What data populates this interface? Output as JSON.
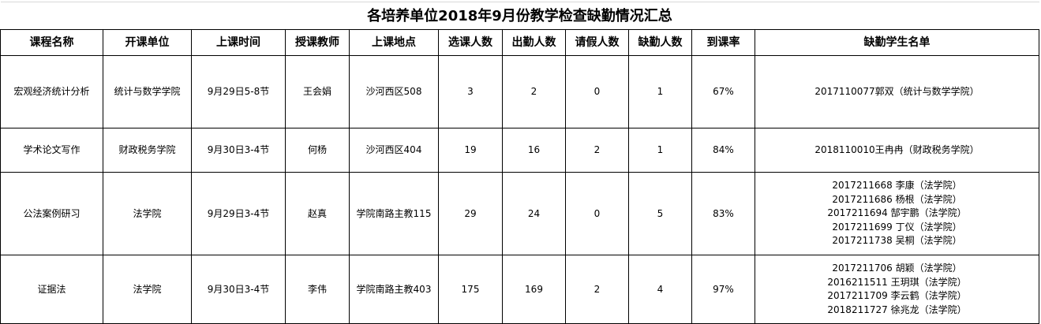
{
  "title": "各培养单位2018年9月份教学检查缺勤情况汇总",
  "headers": [
    "课程名称",
    "开课单位",
    "上课时间",
    "授课教师",
    "上课地点",
    "选课人数",
    "出勤人数",
    "请假人数",
    "缺勤人数",
    "到课率",
    "缺勤学生名单"
  ],
  "rows": [
    {
      "cells": [
        "宏观经济统计分析",
        "统计与数学学院",
        "9月29日5-8节",
        "王会娟",
        "沙河西区508",
        "3",
        "2",
        "0",
        "1",
        "67%"
      ],
      "absent": [
        "2017110077郭双（统计与数学学院）"
      ]
    },
    {
      "cells": [
        "学术论文写作",
        "财政税务学院",
        "9月30日3-4节",
        "何杨",
        "沙河西区404",
        "19",
        "16",
        "2",
        "1",
        "84%"
      ],
      "absent": [
        "2018110010王冉冉（财政税务学院）"
      ]
    },
    {
      "cells": [
        "公法案例研习",
        "法学院",
        "9月29日3-4节",
        "赵真",
        "学院南路主教115",
        "29",
        "24",
        "0",
        "5",
        "83%"
      ],
      "absent": [
        "2017211668 李康（法学院）",
        "2017211686 杨根（法学院）",
        "2017211694 郜宇鹏（法学院）",
        "2017211699 丁仪（法学院）",
        "2017211738 吴桐（法学院）"
      ]
    },
    {
      "cells": [
        "证据法",
        "法学院",
        "9月30日3-4节",
        "李伟",
        "学院南路主教403",
        "175",
        "169",
        "2",
        "4",
        "97%"
      ],
      "absent": [
        "2017211706 胡颖（法学院）",
        "2016211511 王玥琪（法学院）",
        "2017211709 李云鹤（法学院）",
        "2018211727 徐兆龙（法学院）"
      ]
    }
  ]
}
